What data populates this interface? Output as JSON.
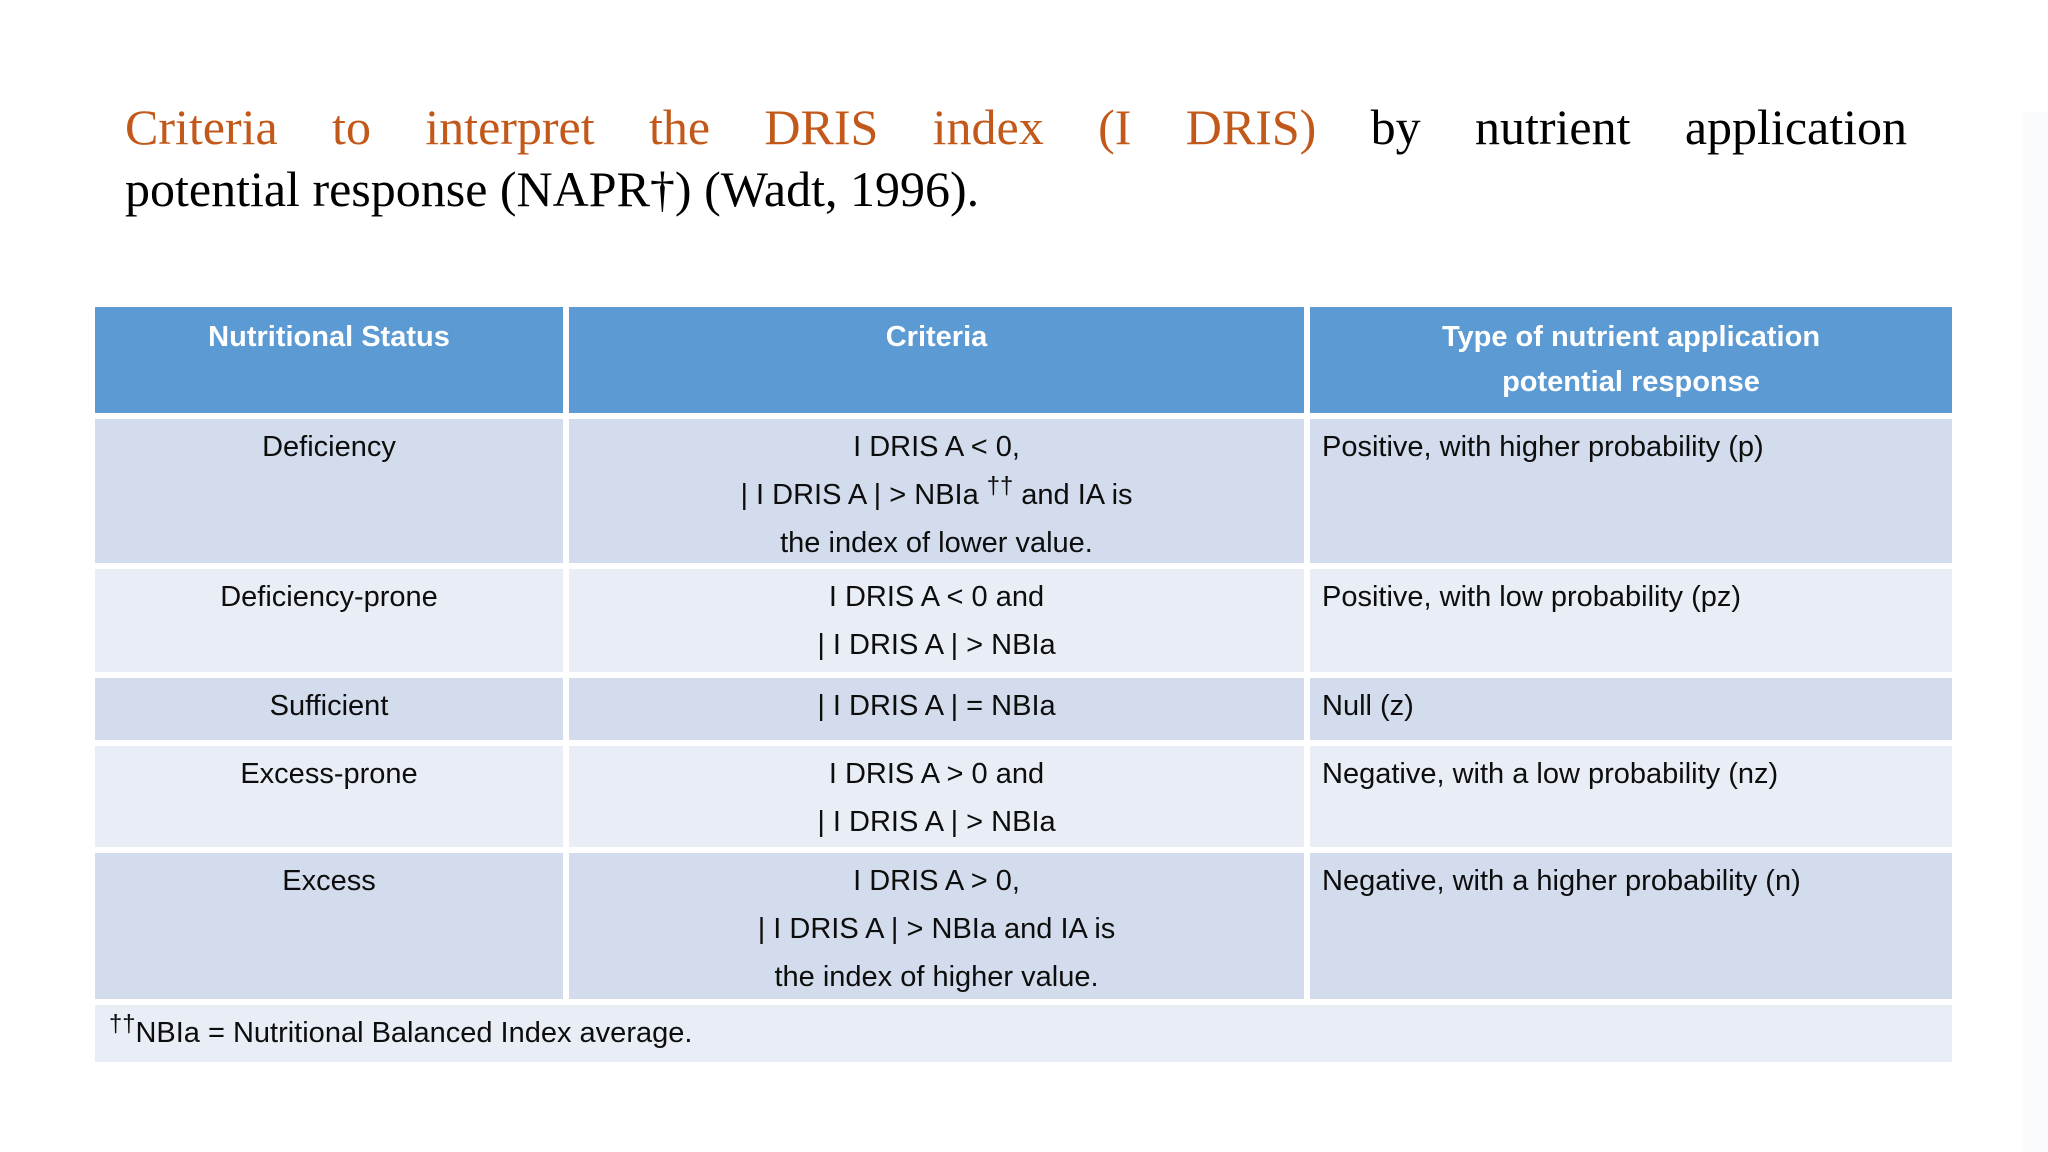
{
  "title": {
    "highlight": "Criteria to interpret the DRIS index (I DRIS)",
    "rest": " by nutrient application",
    "line2": "potential response (NAPR†) (Wadt, 1996).",
    "highlight_color": "#c2591b"
  },
  "table": {
    "headers": [
      {
        "lines": [
          "Nutritional Status"
        ]
      },
      {
        "lines": [
          "Criteria"
        ]
      },
      {
        "lines": [
          "Type of nutrient application",
          "potential response"
        ]
      }
    ],
    "rows": [
      {
        "status": "Deficiency",
        "criteria": [
          {
            "text": "I DRIS A < 0,"
          },
          {
            "pre": "| I DRIS A | > NBIa ",
            "sup": "††",
            "post": " and IA is"
          },
          {
            "text": "the index of lower value."
          }
        ],
        "response": "Positive, with higher probability (p)"
      },
      {
        "status": "Deficiency-prone",
        "criteria": [
          {
            "text": "I DRIS A < 0 and"
          },
          {
            "text": "| I DRIS A | > NBIa"
          }
        ],
        "response": "Positive, with low probability (pz)"
      },
      {
        "status": "Sufficient",
        "criteria": [
          {
            "text": "| I DRIS A | = NBIa"
          }
        ],
        "response": "Null (z)"
      },
      {
        "status": "Excess-prone",
        "criteria": [
          {
            "text": "I DRIS A > 0 and"
          },
          {
            "text": "| I DRIS A | > NBIa"
          }
        ],
        "response": "Negative, with a low probability (nz)"
      },
      {
        "status": "Excess",
        "criteria": [
          {
            "text": "I DRIS A > 0,"
          },
          {
            "text": "| I DRIS A | > NBIa and IA is"
          },
          {
            "text": "the index of higher value."
          }
        ],
        "response": "Negative, with a higher probability (n)"
      }
    ],
    "footnote": {
      "sup": "††",
      "text": "NBIa = Nutritional Balanced Index average."
    },
    "colors": {
      "header_bg": "#5b9ad3",
      "band_dark": "#d2dcec",
      "band_light": "#e9eef6",
      "header_text": "#ffffff",
      "body_text": "#0d0d0d"
    }
  }
}
